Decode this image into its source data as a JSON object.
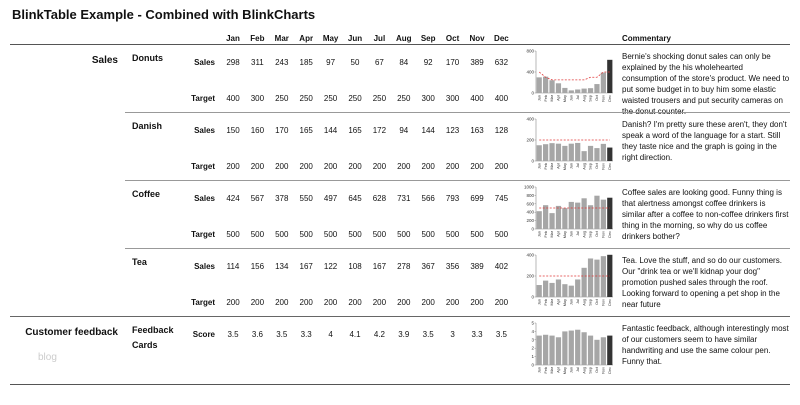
{
  "title": "BlinkTable Example - Combined with BlinkCharts",
  "columns": {
    "months": [
      "Jan",
      "Feb",
      "Mar",
      "Apr",
      "May",
      "Jun",
      "Jul",
      "Aug",
      "Sep",
      "Oct",
      "Nov",
      "Dec"
    ],
    "commentary": "Commentary"
  },
  "groups": [
    {
      "label": "Sales",
      "items": [
        {
          "name": "Donuts",
          "rows": [
            {
              "label": "Sales",
              "values": [
                298,
                311,
                243,
                185,
                97,
                50,
                67,
                84,
                92,
                170,
                389,
                632
              ]
            },
            {
              "label": "Target",
              "values": [
                400,
                300,
                250,
                250,
                250,
                250,
                250,
                250,
                300,
                300,
                400,
                400
              ]
            }
          ],
          "chart": {
            "type": "bar",
            "ylim": [
              0,
              800
            ],
            "yticks": [
              0,
              400,
              800
            ],
            "bar_color": "#a6a6a6",
            "last_bar_color": "#333333",
            "target_color": "#e03a3a"
          },
          "commentary": "Bernie's shocking donut sales can only be explained by the his wholehearted consumption of the store's product. We need to put some budget in to buy him some elastic waisted trousers and put security cameras on the donut counter."
        },
        {
          "name": "Danish",
          "rows": [
            {
              "label": "Sales",
              "values": [
                150,
                160,
                170,
                165,
                144,
                165,
                172,
                94,
                144,
                123,
                163,
                128
              ]
            },
            {
              "label": "Target",
              "values": [
                200,
                200,
                200,
                200,
                200,
                200,
                200,
                200,
                200,
                200,
                200,
                200
              ]
            }
          ],
          "chart": {
            "type": "bar",
            "ylim": [
              0,
              400
            ],
            "yticks": [
              0,
              200,
              400
            ],
            "bar_color": "#a6a6a6",
            "last_bar_color": "#333333",
            "target_color": "#e03a3a"
          },
          "commentary": "Danish? I'm pretty sure these aren't, they don't speak a word of the language for a start. Still they taste nice and the graph is going in the right direction."
        },
        {
          "name": "Coffee",
          "rows": [
            {
              "label": "Sales",
              "values": [
                424,
                567,
                378,
                550,
                497,
                645,
                628,
                731,
                566,
                793,
                699,
                745
              ]
            },
            {
              "label": "Target",
              "values": [
                500,
                500,
                500,
                500,
                500,
                500,
                500,
                500,
                500,
                500,
                500,
                500
              ]
            }
          ],
          "chart": {
            "type": "bar",
            "ylim": [
              0,
              1000
            ],
            "yticks": [
              0,
              200,
              400,
              600,
              800,
              1000
            ],
            "bar_color": "#a6a6a6",
            "last_bar_color": "#333333",
            "target_color": "#e03a3a"
          },
          "commentary": "Coffee sales are looking good. Funny thing is that alertness amongst coffee drinkers is similar after a coffee to non-coffee drinkers first thing in the morning, so why do us coffee drinkers bother?"
        },
        {
          "name": "Tea",
          "rows": [
            {
              "label": "Sales",
              "values": [
                114,
                156,
                134,
                167,
                122,
                108,
                167,
                278,
                367,
                356,
                389,
                402
              ]
            },
            {
              "label": "Target",
              "values": [
                200,
                200,
                200,
                200,
                200,
                200,
                200,
                200,
                200,
                200,
                200,
                200
              ]
            }
          ],
          "chart": {
            "type": "bar",
            "ylim": [
              0,
              400
            ],
            "yticks": [
              0,
              200,
              400
            ],
            "bar_color": "#a6a6a6",
            "last_bar_color": "#333333",
            "target_color": "#e03a3a"
          },
          "commentary": "Tea. Love the stuff, and so do our customers. Our \"drink tea or we'll kidnap your dog\" promotion pushed sales through the roof. Looking forward to opening a pet shop in the near future"
        }
      ]
    },
    {
      "label": "Customer feedback",
      "items": [
        {
          "name": "Feedback Cards",
          "rows": [
            {
              "label": "Score",
              "values": [
                3.5,
                3.6,
                3.5,
                3.3,
                4,
                4.1,
                4.2,
                3.9,
                3.5,
                3,
                3.3,
                3.5
              ]
            }
          ],
          "chart": {
            "type": "bar",
            "ylim": [
              0,
              5
            ],
            "yticks": [
              0,
              1,
              2,
              3,
              4,
              5
            ],
            "bar_color": "#a6a6a6",
            "last_bar_color": "#333333",
            "target_color": "#e03a3a"
          },
          "commentary": "Fantastic feedback, although interestingly most of our customers seem to have similar handwriting and use the same colour pen. Funny that."
        }
      ]
    }
  ],
  "watermark": "blog"
}
